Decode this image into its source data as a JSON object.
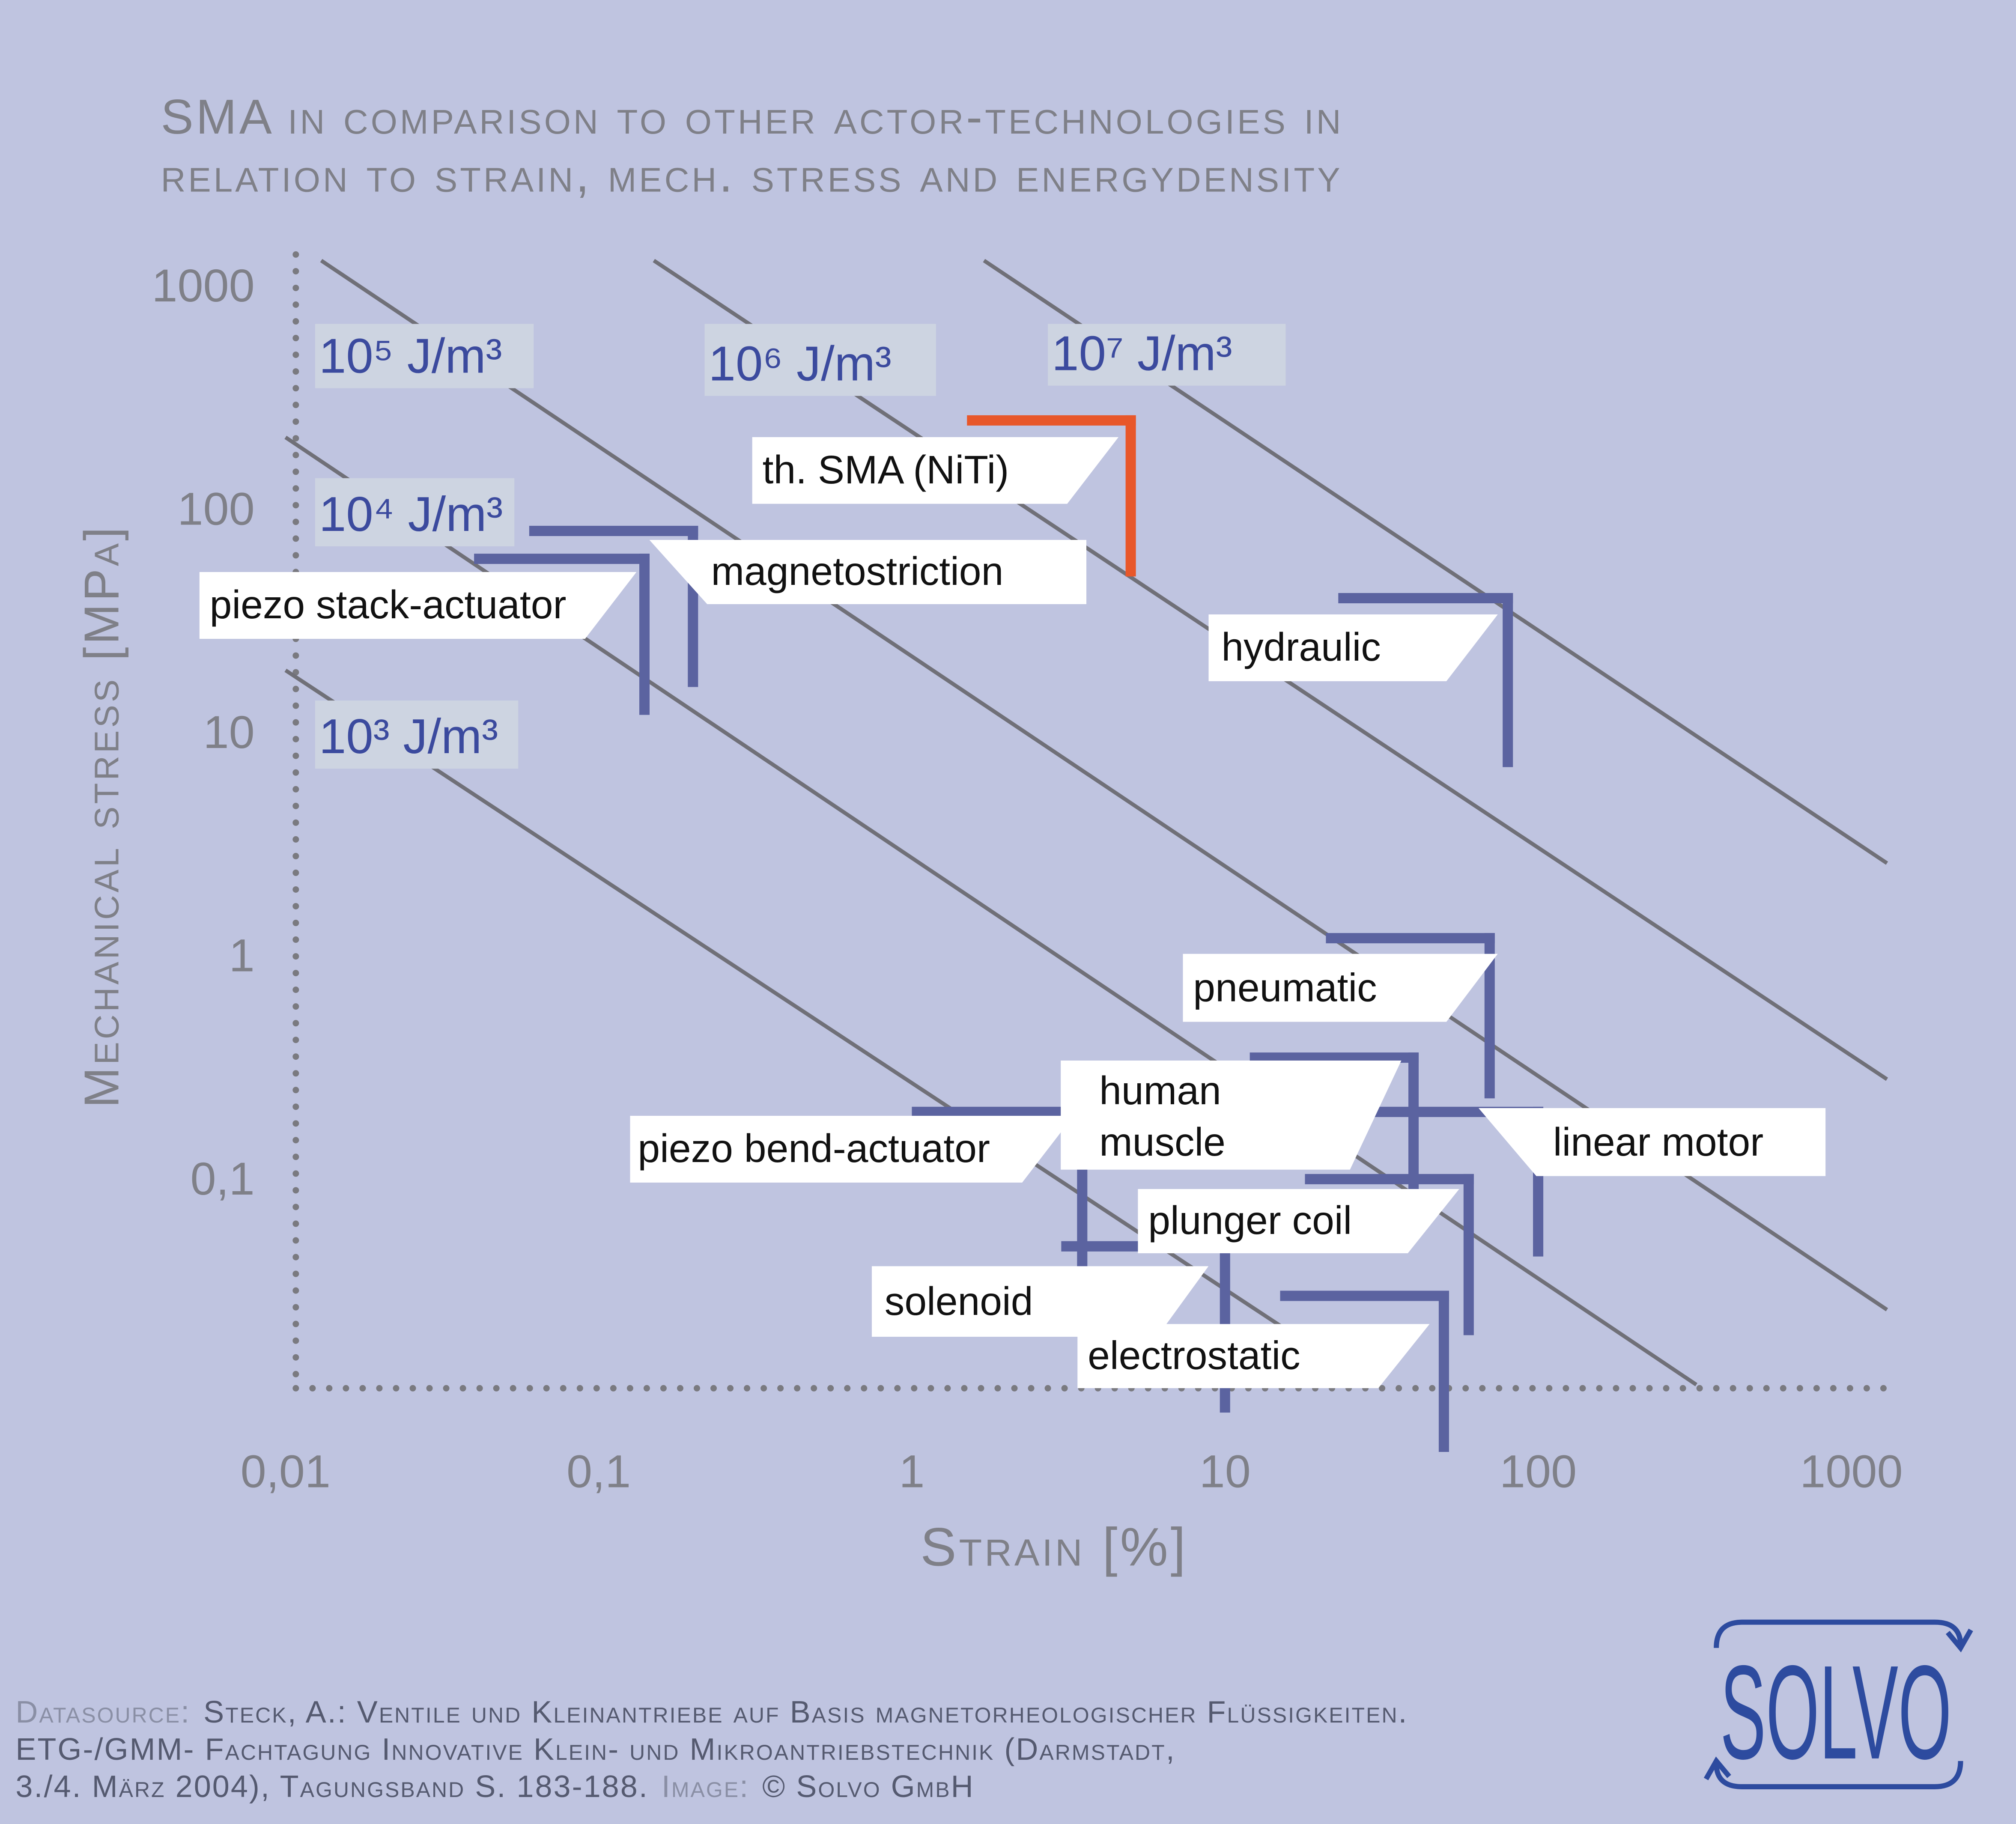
{
  "chart_data": {
    "type": "range",
    "title": [
      "SMA in comparison to other actor-technologies in",
      "relation to strain, mech. stress and energydensity"
    ],
    "xlabel": "Strain [%]",
    "ylabel": "Mechanical stress [MPa]",
    "xscale": "log",
    "yscale": "log",
    "xlim": [
      0.01,
      1000
    ],
    "ylim": [
      0.01,
      1000
    ],
    "xticks": [
      {
        "value": 0.01,
        "label": "0,01"
      },
      {
        "value": 0.1,
        "label": "0,1"
      },
      1,
      10,
      100,
      1000
    ],
    "yticks": [
      {
        "value": 0.1,
        "label": "0,1"
      },
      1,
      10,
      100,
      1000
    ],
    "series": [
      {
        "name": "th. SMA (NiTi)",
        "color": "#e8572a",
        "strain": [
          1.5,
          5
        ],
        "stress": [
          50,
          250
        ]
      },
      {
        "name": "magnetostriction",
        "color": "#5b63a0",
        "strain": [
          0.06,
          0.2
        ],
        "stress": [
          16,
          80
        ]
      },
      {
        "name": "piezo stack-actuator",
        "color": "#5b63a0",
        "strain": [
          0.04,
          0.14
        ],
        "stress": [
          12,
          60
        ]
      },
      {
        "name": "hydraulic",
        "color": "#5b63a0",
        "strain": [
          23,
          80
        ],
        "stress": [
          7,
          40
        ]
      },
      {
        "name": "pneumatic",
        "color": "#5b63a0",
        "strain": [
          21,
          70
        ],
        "stress": [
          0.23,
          1.2
        ]
      },
      {
        "name": "human muscle",
        "color": "#5b63a0",
        "strain": [
          12,
          40
        ],
        "stress": [
          0.07,
          0.35
        ]
      },
      {
        "name": "linear motor",
        "color": "#5b63a0",
        "strain": [
          30,
          100
        ],
        "stress": [
          0.045,
          0.2
        ]
      },
      {
        "name": "piezo bend-actuator",
        "color": "#5b63a0",
        "strain": [
          1,
          3.5
        ],
        "stress": [
          0.04,
          0.2
        ]
      },
      {
        "name": "plunger coil",
        "color": "#5b63a0",
        "strain": [
          18,
          60
        ],
        "stress": [
          0.02,
          0.1
        ]
      },
      {
        "name": "solenoid",
        "color": "#5b63a0",
        "strain": [
          3,
          10
        ],
        "stress": [
          0.009,
          0.05
        ]
      },
      {
        "name": "electrostatic",
        "color": "#5b63a0",
        "strain": [
          15,
          50
        ],
        "stress": [
          0.006,
          0.03
        ]
      }
    ],
    "energy_lines": {
      "color": "#707078",
      "lines": [
        {
          "label": "10³ J/m³",
          "x": [
            0.01,
            29
          ],
          "y": [
            19,
            0.012
          ]
        },
        {
          "label": "10⁴ J/m³",
          "x": [
            0.01,
            320
          ],
          "y": [
            210,
            0.012
          ]
        },
        {
          "label": "10⁵ J/m³",
          "x": [
            0.013,
            1300
          ],
          "y": [
            1300,
            0.026
          ]
        },
        {
          "label": "10⁶ J/m³",
          "x": [
            0.15,
            1300
          ],
          "y": [
            1300,
            0.28
          ]
        },
        {
          "label": "10⁷ J/m³",
          "x": [
            1.7,
            1300
          ],
          "y": [
            1300,
            2.6
          ]
        }
      ]
    }
  },
  "source": {
    "label": "Datasource:",
    "lines": [
      "Steck, A.: Ventile und Kleinantriebe auf Basis magnetorheologischer Flüssigkeiten.",
      "ETG-/GMM- Fachtagung Innovative Klein- und Mikroantriebstechnik (Darmstadt,",
      "3./4. März 2004), Tagungsband S. 183-188."
    ],
    "image_label": "Image:",
    "credit": "© Solvo GmbH"
  },
  "logo": "SOLVO"
}
